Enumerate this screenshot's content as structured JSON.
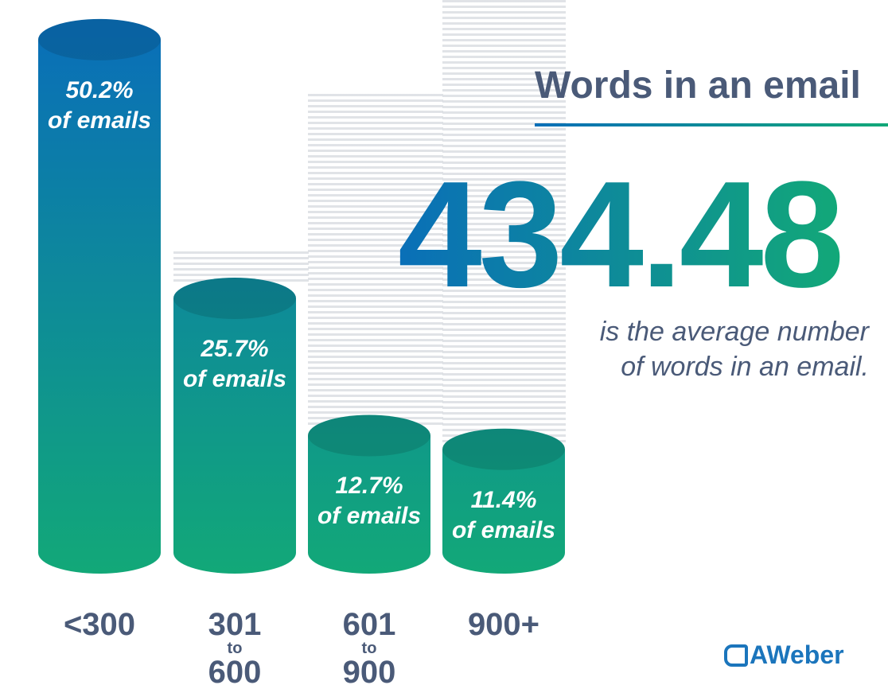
{
  "title": "Words in an email",
  "average": "434.48",
  "average_caption": [
    "is the average number",
    "of words in an email."
  ],
  "brand": "AWeber",
  "colors": {
    "blue": "#0a6fb8",
    "green": "#12a878",
    "text": "#4a5a78"
  },
  "chart_data": {
    "type": "bar",
    "title": "Words in an email",
    "categories": [
      "<300",
      "301 to 600",
      "601 to 900",
      "900+"
    ],
    "category_labels": [
      {
        "top": "<300"
      },
      {
        "top": "301",
        "mid": "to",
        "bot": "600"
      },
      {
        "top": "601",
        "mid": "to",
        "bot": "900"
      },
      {
        "top": "900+"
      }
    ],
    "values": [
      50.2,
      25.7,
      12.7,
      11.4
    ],
    "value_labels": [
      [
        "50.2%",
        "of emails"
      ],
      [
        "25.7%",
        "of emails"
      ],
      [
        "12.7%",
        "of emails"
      ],
      [
        "11.4%",
        "of emails"
      ]
    ],
    "unit": "% of emails"
  }
}
